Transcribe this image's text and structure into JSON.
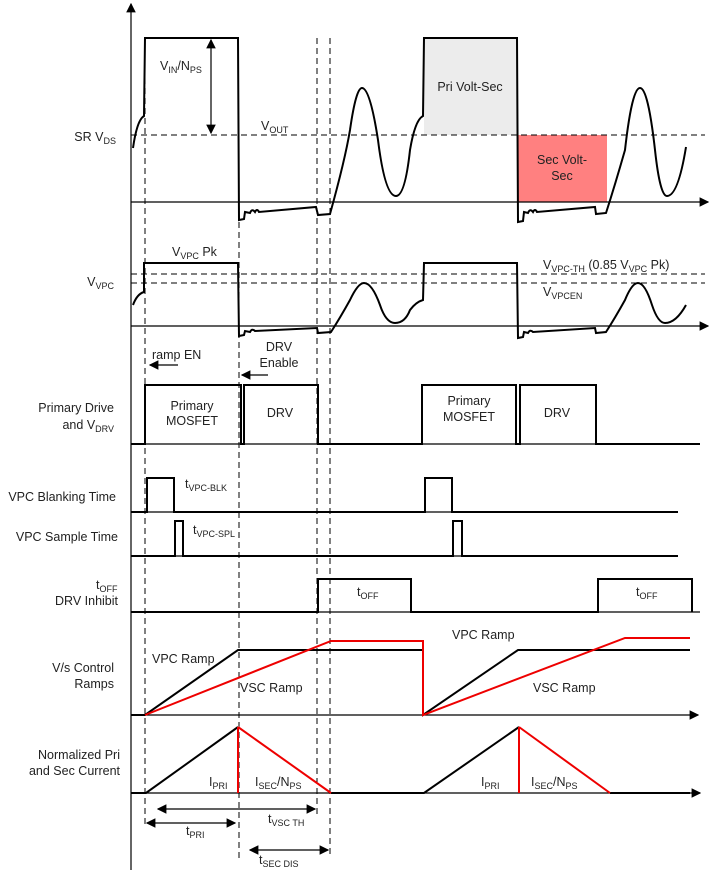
{
  "rows": {
    "sr_vds": "SR V",
    "sr_vds_sub": "DS",
    "vvpc": "V",
    "vvpc_sub": "VPC",
    "primary_drive_1": "Primary Drive",
    "primary_drive_2": "and V",
    "primary_drive_sub": "DRV",
    "blanking": "VPC Blanking Time",
    "sample": "VPC Sample Time",
    "toff": "t",
    "toff_sub": "OFF",
    "drv_inhibit": "DRV Inhibit",
    "ramps_1": "V/s Control",
    "ramps_2": "Ramps",
    "current_1": "Normalized Pri",
    "current_2": "and Sec Current"
  },
  "labels": {
    "vin_nps": [
      "V",
      "IN",
      "/N",
      "PS"
    ],
    "vout": [
      "V",
      "OUT"
    ],
    "pri_volt_sec": "Pri Volt-Sec",
    "sec_volt_sec_1": "Sec Volt-",
    "sec_volt_sec_2": "Sec",
    "vvpc_pk": [
      "V",
      "VPC",
      " Pk"
    ],
    "vvpc_th": [
      "V",
      "VPC-TH",
      "  (0.85 V",
      "VPC",
      " Pk)"
    ],
    "vvpcen": [
      "V",
      "VPCEN"
    ],
    "ramp_en": "ramp EN",
    "drv_enable_1": "DRV",
    "drv_enable_2": "Enable",
    "primary_mosfet_1": "Primary",
    "primary_mosfet_2": "MOSFET",
    "drv": "DRV",
    "tvpc_blk": [
      "t",
      "VPC-BLK"
    ],
    "tvpc_spl": [
      "t",
      "VPC-SPL"
    ],
    "toff": [
      "t",
      "OFF"
    ],
    "vpc_ramp": "VPC Ramp",
    "vsc_ramp": "VSC Ramp",
    "ipri": [
      "I",
      "PRI"
    ],
    "isec_nps": [
      "I",
      "SEC",
      "/N",
      "PS"
    ],
    "tpri": [
      "t",
      "PRI"
    ],
    "tvsc_th": [
      "t",
      "VSC TH"
    ],
    "tsec_dis": [
      "t",
      "SEC DIS"
    ]
  },
  "colors": {
    "pri_volt_sec_fill": "#ececec",
    "sec_volt_sec_fill": "#ff8080",
    "sec_trace": "#e00000"
  }
}
